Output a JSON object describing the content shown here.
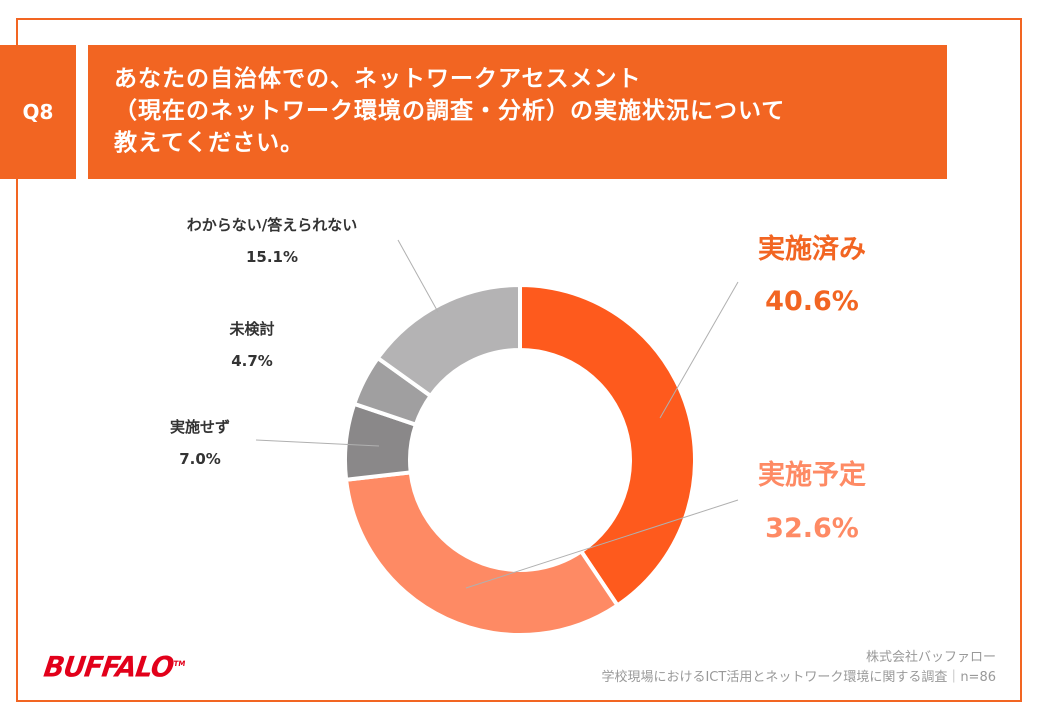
{
  "header": {
    "q_number": "Q8",
    "question_lines": [
      "あなたの自治体での、ネットワークアセスメント",
      "（現在のネットワーク環境の調査・分析）の実施状況について",
      "教えてください。"
    ]
  },
  "chart_data": {
    "type": "pie",
    "title": "",
    "donut": true,
    "slices": [
      {
        "label": "実施済み",
        "value": 40.6,
        "value_label": "40.6%",
        "color": "#fe5a1d",
        "label_color": "#f26522"
      },
      {
        "label": "実施予定",
        "value": 32.6,
        "value_label": "32.6%",
        "color": "#fe8a64",
        "label_color": "#fe8a64"
      },
      {
        "label": "実施せず",
        "value": 7.0,
        "value_label": "7.0%",
        "color": "#8a8889",
        "label_color": "#333333"
      },
      {
        "label": "未検討",
        "value": 4.7,
        "value_label": "4.7%",
        "color": "#a09fa0",
        "label_color": "#333333"
      },
      {
        "label": "わからない/答えられない",
        "value": 15.1,
        "value_label": "15.1%",
        "color": "#b4b3b4",
        "label_color": "#333333"
      }
    ]
  },
  "footer": {
    "company": "株式会社バッファロー",
    "survey": "学校現場におけるICT活用とネットワーク環境に関する調査｜n=86",
    "logo": "BUFFALO",
    "logo_mark": "TM"
  }
}
